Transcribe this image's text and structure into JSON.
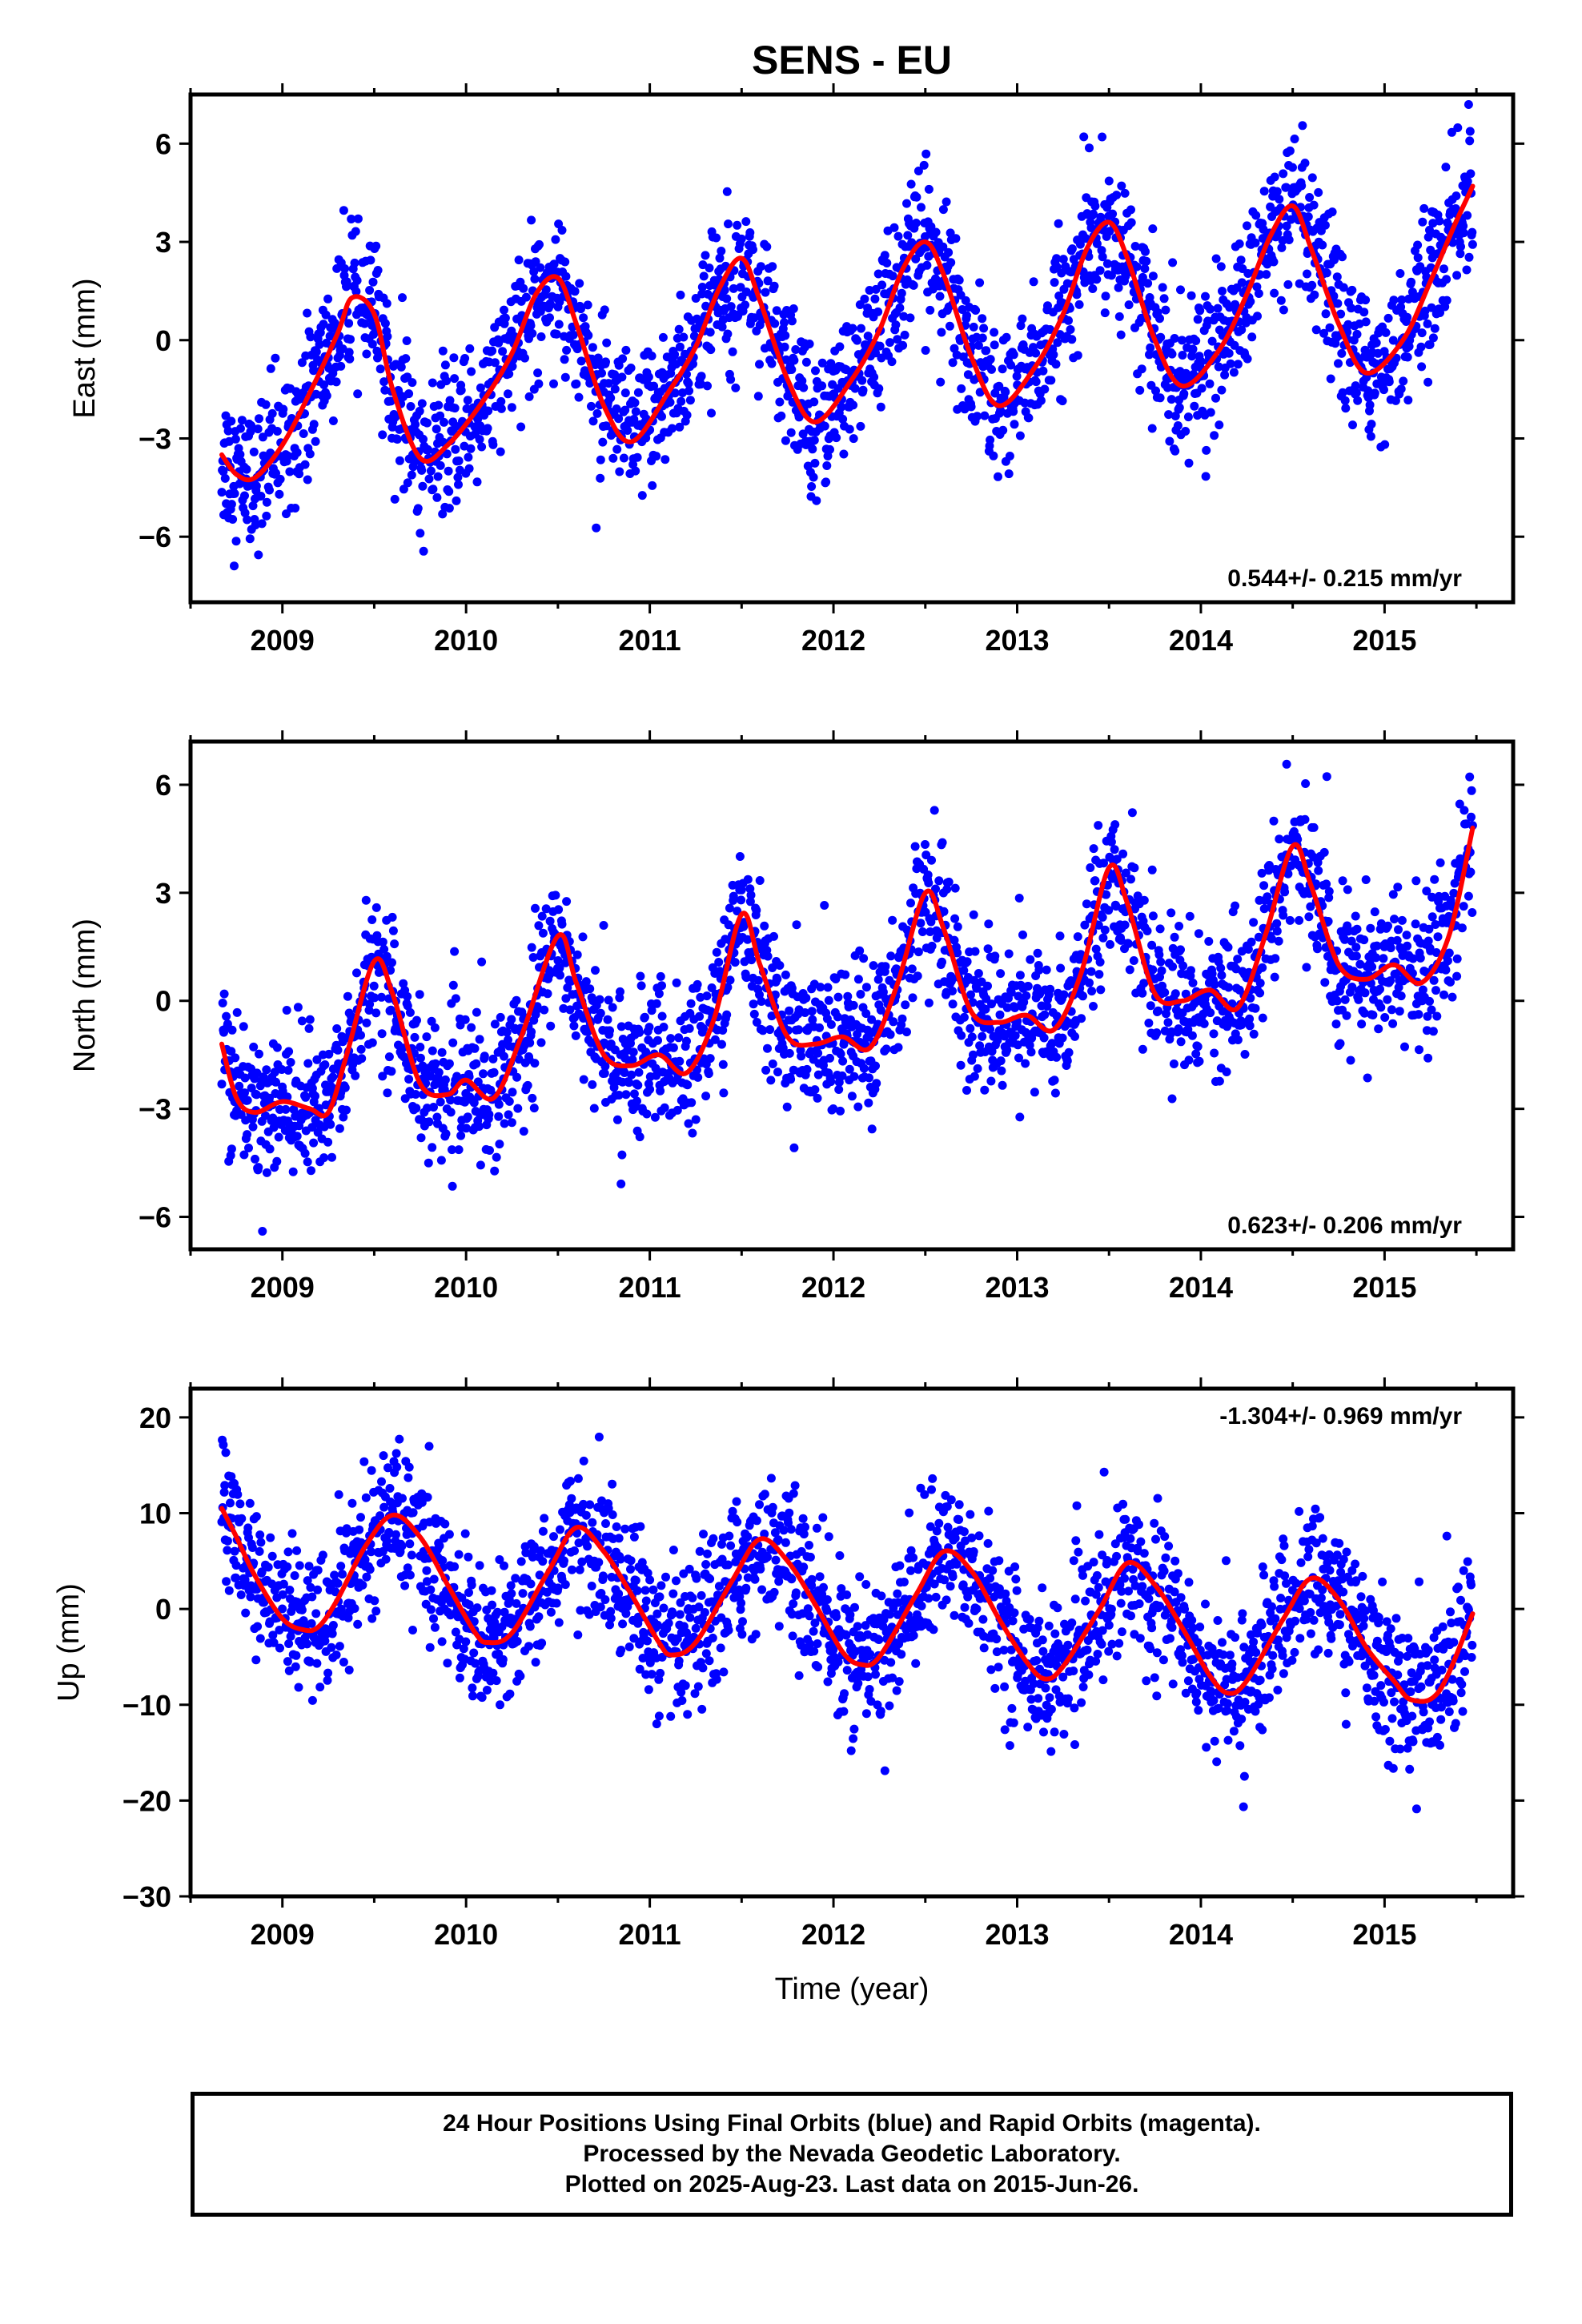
{
  "title": "SENS - EU",
  "footer": {
    "line1": "24 Hour Positions Using Final Orbits (blue) and Rapid Orbits (magenta).",
    "line2": "Processed by the Nevada Geodetic Laboratory.",
    "line3": "Plotted on 2025-Aug-23. Last data on 2015-Jun-26."
  },
  "colors": {
    "points": "#0000ff",
    "fit": "#ff0000",
    "frame": "#000000"
  },
  "chart_data": [
    {
      "type": "scatter",
      "ylabel": "East (mm)",
      "xlabel": "",
      "xlim": [
        2008.5,
        2015.7
      ],
      "ylim": [
        -8,
        7.5
      ],
      "xticks": [
        2009,
        2010,
        2011,
        2012,
        2013,
        2014,
        2015
      ],
      "yticks": [
        6,
        3,
        0,
        -3,
        -6
      ],
      "ytick_labels": [
        "6",
        "3",
        "0",
        "−3",
        "−6"
      ],
      "rate_label": "0.544+/- 0.215 mm/yr",
      "rate_position": "bottom-right",
      "series": [
        {
          "values": []
        }
      ],
      "fit": {
        "x": [
          2008.67,
          2008.75,
          2008.85,
          2009.0,
          2009.15,
          2009.3,
          2009.38,
          2009.5,
          2009.6,
          2009.75,
          2009.9,
          2010.1,
          2010.25,
          2010.38,
          2010.5,
          2010.6,
          2010.75,
          2010.9,
          2011.1,
          2011.25,
          2011.38,
          2011.5,
          2011.6,
          2011.75,
          2011.9,
          2012.1,
          2012.25,
          2012.38,
          2012.5,
          2012.6,
          2012.75,
          2012.9,
          2013.1,
          2013.25,
          2013.38,
          2013.5,
          2013.6,
          2013.75,
          2013.9,
          2014.1,
          2014.25,
          2014.38,
          2014.5,
          2014.6,
          2014.75,
          2014.9,
          2015.1,
          2015.25,
          2015.38,
          2015.48
        ],
        "y": [
          -3.5,
          -4.1,
          -4.2,
          -3.2,
          -1.6,
          0.2,
          1.3,
          0.8,
          -1.5,
          -3.6,
          -3.2,
          -1.8,
          -0.4,
          1.4,
          1.9,
          0.5,
          -2.0,
          -3.1,
          -1.6,
          -0.2,
          1.6,
          2.5,
          1.2,
          -1.2,
          -2.5,
          -1.2,
          0.3,
          2.2,
          3.0,
          2.0,
          -0.5,
          -2.0,
          -0.8,
          0.8,
          2.8,
          3.6,
          2.5,
          0.0,
          -1.4,
          -0.3,
          1.4,
          3.2,
          4.1,
          2.8,
          0.5,
          -1.0,
          0.0,
          1.8,
          3.5,
          4.7
        ]
      }
    },
    {
      "type": "scatter",
      "ylabel": "North (mm)",
      "xlabel": "",
      "xlim": [
        2008.5,
        2015.7
      ],
      "ylim": [
        -6.9,
        7.2
      ],
      "xticks": [
        2009,
        2010,
        2011,
        2012,
        2013,
        2014,
        2015
      ],
      "yticks": [
        6,
        3,
        0,
        -3,
        -6
      ],
      "ytick_labels": [
        "6",
        "3",
        "0",
        "−3",
        "−6"
      ],
      "rate_label": "0.623+/- 0.206 mm/yr",
      "rate_position": "bottom-right",
      "series": [
        {
          "values": []
        }
      ],
      "fit": {
        "x": [
          2008.67,
          2008.75,
          2008.85,
          2009.0,
          2009.15,
          2009.25,
          2009.35,
          2009.5,
          2009.6,
          2009.75,
          2009.9,
          2010.0,
          2010.15,
          2010.3,
          2010.5,
          2010.6,
          2010.75,
          2010.9,
          2011.05,
          2011.2,
          2011.35,
          2011.5,
          2011.6,
          2011.75,
          2011.9,
          2012.05,
          2012.2,
          2012.35,
          2012.5,
          2012.6,
          2012.75,
          2012.9,
          2013.05,
          2013.2,
          2013.35,
          2013.5,
          2013.6,
          2013.75,
          2013.9,
          2014.05,
          2014.2,
          2014.35,
          2014.5,
          2014.6,
          2014.75,
          2014.9,
          2015.05,
          2015.2,
          2015.35,
          2015.48
        ],
        "y": [
          -1.2,
          -2.7,
          -3.1,
          -2.8,
          -3.0,
          -3.1,
          -1.5,
          1.1,
          0.2,
          -2.3,
          -2.6,
          -2.2,
          -2.7,
          -1.0,
          1.8,
          0.5,
          -1.5,
          -1.8,
          -1.5,
          -2.0,
          -0.5,
          2.4,
          1.0,
          -1.0,
          -1.2,
          -1.0,
          -1.3,
          0.5,
          3.0,
          2.0,
          -0.3,
          -0.6,
          -0.4,
          -0.8,
          0.8,
          3.7,
          2.7,
          0.2,
          0.0,
          0.3,
          -0.2,
          1.8,
          4.3,
          3.2,
          1.0,
          0.6,
          1.0,
          0.5,
          1.8,
          4.8
        ]
      }
    },
    {
      "type": "scatter",
      "ylabel": "Up (mm)",
      "xlabel": "Time (year)",
      "xlim": [
        2008.5,
        2015.7
      ],
      "ylim": [
        -30,
        23
      ],
      "xticks": [
        2009,
        2010,
        2011,
        2012,
        2013,
        2014,
        2015
      ],
      "yticks": [
        20,
        10,
        0,
        -10,
        -20,
        -30
      ],
      "ytick_labels": [
        "20",
        "10",
        "0",
        "−10",
        "−20",
        "−30"
      ],
      "rate_label": "-1.304+/- 0.969 mm/yr",
      "rate_position": "top-right",
      "series": [
        {
          "values": []
        }
      ],
      "fit": {
        "x": [
          2008.67,
          2008.75,
          2008.85,
          2009.0,
          2009.12,
          2009.2,
          2009.3,
          2009.45,
          2009.6,
          2009.75,
          2009.9,
          2010.05,
          2010.12,
          2010.25,
          2010.45,
          2010.6,
          2010.75,
          2010.9,
          2011.05,
          2011.12,
          2011.25,
          2011.45,
          2011.6,
          2011.75,
          2011.9,
          2012.05,
          2012.15,
          2012.25,
          2012.45,
          2012.6,
          2012.75,
          2012.9,
          2013.05,
          2013.15,
          2013.25,
          2013.45,
          2013.6,
          2013.75,
          2013.9,
          2014.05,
          2014.15,
          2014.25,
          2014.45,
          2014.6,
          2014.75,
          2014.9,
          2015.05,
          2015.15,
          2015.3,
          2015.48
        ],
        "y": [
          10.5,
          7.5,
          3.5,
          -1.0,
          -2.2,
          -1.8,
          1.0,
          6.5,
          9.8,
          7.5,
          2.5,
          -2.5,
          -3.5,
          -2.5,
          4.0,
          8.5,
          6.0,
          1.5,
          -3.5,
          -4.8,
          -3.5,
          3.0,
          7.3,
          5.0,
          0.5,
          -4.5,
          -5.8,
          -5.0,
          1.5,
          6.0,
          4.0,
          -1.0,
          -5.5,
          -7.3,
          -6.0,
          0.0,
          4.8,
          2.5,
          -2.0,
          -7.0,
          -8.8,
          -7.5,
          -1.0,
          3.2,
          1.0,
          -4.0,
          -7.5,
          -9.5,
          -8.5,
          -0.5
        ]
      }
    }
  ]
}
